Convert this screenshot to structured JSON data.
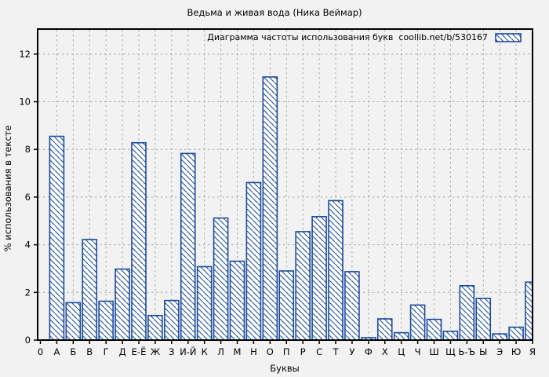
{
  "window": {
    "background": "#f2f2f2"
  },
  "chart_data": {
    "type": "bar",
    "title": "Ведьма и живая вода (Ника Веймар)",
    "xlabel": "Буквы",
    "ylabel": "% использования в тексте",
    "legend": {
      "label": "Диаграмма частоты использования букв  coollib.net/b/530167",
      "position": "top-right-inside",
      "swatch": "blue-diagonal-hatched-box"
    },
    "grid": true,
    "bar_style": "diagonal-hatch",
    "bar_color": "#1a4a9e",
    "bar_fill": "#ffffff",
    "grid_color": "#a8a8a8",
    "axis_color": "#000000",
    "ylim": [
      0,
      13.05
    ],
    "yticks": [
      0,
      2,
      4,
      6,
      8,
      10,
      12
    ],
    "x_origin_label": "0",
    "categories": [
      "А",
      "Б",
      "В",
      "Г",
      "Д",
      "Е-Ё",
      "Ж",
      "З",
      "И-Й",
      "К",
      "Л",
      "М",
      "Н",
      "О",
      "П",
      "Р",
      "С",
      "Т",
      "У",
      "Ф",
      "Х",
      "Ц",
      "Ч",
      "Ш",
      "Щ",
      "Ь-Ъ",
      "Ы",
      "Э",
      "Ю",
      "Я"
    ],
    "values": [
      8.55,
      1.57,
      4.22,
      1.63,
      2.98,
      8.28,
      1.03,
      1.66,
      7.83,
      3.08,
      5.12,
      3.31,
      6.61,
      11.04,
      2.9,
      4.55,
      5.18,
      5.85,
      2.87,
      0.1,
      0.89,
      0.31,
      1.47,
      0.87,
      0.37,
      2.28,
      1.75,
      0.26,
      0.54,
      2.43
    ]
  }
}
